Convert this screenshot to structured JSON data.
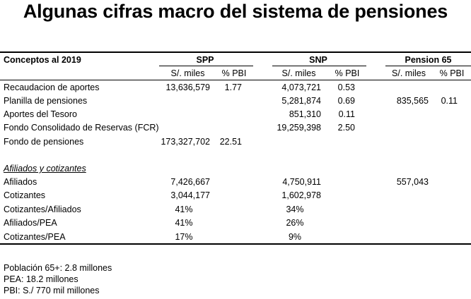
{
  "title": "Algunas cifras macro del sistema de pensiones",
  "table": {
    "corner_label": "Conceptos al 2019",
    "groups": [
      "SPP",
      "SNP",
      "Pension 65"
    ],
    "subheaders": [
      "S/. miles",
      "% PBI",
      "S/. miles",
      "% PBI",
      "S/. miles",
      "% PBI"
    ],
    "rows": [
      {
        "label": "Recaudacion de aportes",
        "spp_miles": "13,636,579",
        "spp_pbi": "1.77",
        "snp_miles": "4,073,721",
        "snp_pbi": "0.53",
        "p65_miles": "",
        "p65_pbi": ""
      },
      {
        "label": "Planilla de pensiones",
        "spp_miles": "",
        "spp_pbi": "",
        "snp_miles": "5,281,874",
        "snp_pbi": "0.69",
        "p65_miles": "835,565",
        "p65_pbi": "0.11"
      },
      {
        "label": "Aportes del Tesoro",
        "spp_miles": "",
        "spp_pbi": "",
        "snp_miles": "851,310",
        "snp_pbi": "0.11",
        "p65_miles": "",
        "p65_pbi": ""
      },
      {
        "label": "Fondo Consolidado de Reservas (FCR)",
        "spp_miles": "",
        "spp_pbi": "",
        "snp_miles": "19,259,398",
        "snp_pbi": "2.50",
        "p65_miles": "",
        "p65_pbi": ""
      },
      {
        "label": "Fondo de pensiones",
        "spp_miles": "173,327,702",
        "spp_pbi": "22.51",
        "snp_miles": "",
        "snp_pbi": "",
        "p65_miles": "",
        "p65_pbi": ""
      }
    ],
    "section_title": "Afiliados y cotizantes",
    "section_rows": [
      {
        "label": "Afiliados",
        "spp": "7,426,667",
        "snp": "4,750,911",
        "p65": "557,043"
      },
      {
        "label": "Cotizantes",
        "spp": "3,044,177",
        "snp": "1,602,978",
        "p65": ""
      },
      {
        "label": "Cotizantes/Afiliados",
        "spp": "41%",
        "snp": "34%",
        "p65": ""
      },
      {
        "label": "Afiliados/PEA",
        "spp": "41%",
        "snp": "26%",
        "p65": ""
      },
      {
        "label": "Cotizantes/PEA",
        "spp": "17%",
        "snp": "9%",
        "p65": ""
      }
    ]
  },
  "footnotes": [
    "Población 65+: 2.8 millones",
    "PEA: 18.2 millones",
    "PBI: S./ 770 mil millones"
  ]
}
